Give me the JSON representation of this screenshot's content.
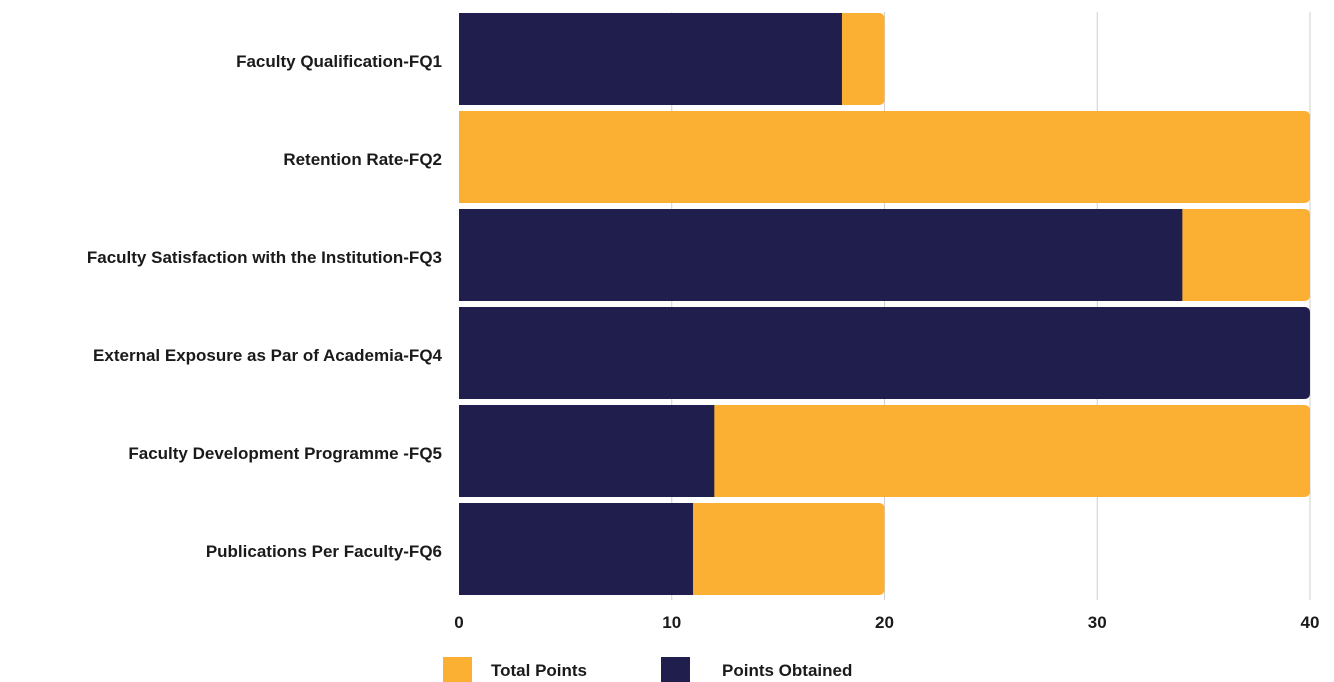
{
  "chart_data": {
    "type": "bar",
    "orientation": "horizontal",
    "stacked": "overlay",
    "categories": [
      "Faculty Qualification-FQ1",
      "Retention Rate-FQ2",
      "Faculty Satisfaction with the Institution-FQ3",
      "External Exposure as Par of Academia-FQ4",
      "Faculty Development Programme -FQ5",
      "Publications Per Faculty-FQ6"
    ],
    "series": [
      {
        "name": "Total Points",
        "color": "#FBB034",
        "values": [
          20,
          40,
          40,
          40,
          40,
          20
        ]
      },
      {
        "name": "Points Obtained",
        "color": "#1F1E4C",
        "values": [
          18,
          0,
          34,
          40,
          12,
          11
        ]
      }
    ],
    "xlim": [
      0,
      40
    ],
    "xticks": [
      0,
      10,
      20,
      30,
      40
    ],
    "grid": "vertical",
    "legend": "bottom"
  }
}
